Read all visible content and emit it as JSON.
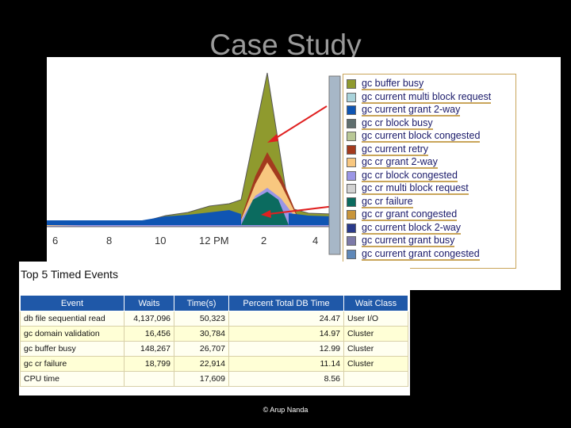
{
  "slide": {
    "title": "Case Study",
    "footer": "© Arup Nanda"
  },
  "chart": {
    "x_ticks": [
      "6",
      "8",
      "10",
      "12 PM",
      "2",
      "4"
    ],
    "legend": [
      {
        "label": "gc buffer busy",
        "color": "#8f9a2e"
      },
      {
        "label": "gc current multi block request",
        "color": "#a9d3da"
      },
      {
        "label": "gc current grant 2-way",
        "color": "#0f55b3"
      },
      {
        "label": "gc cr block busy",
        "color": "#5f6f6f"
      },
      {
        "label": "gc current block congested",
        "color": "#b9c896"
      },
      {
        "label": "gc current retry",
        "color": "#a33a1e"
      },
      {
        "label": "gc cr grant 2-way",
        "color": "#f8c77f"
      },
      {
        "label": "gc cr block congested",
        "color": "#9b96e6"
      },
      {
        "label": "gc cr multi block request",
        "color": "#d2d2d2"
      },
      {
        "label": "gc cr failure",
        "color": "#0b6b5f"
      },
      {
        "label": "gc cr grant congested",
        "color": "#c8953a"
      },
      {
        "label": "gc current block 2-way",
        "color": "#2a3a8a"
      },
      {
        "label": "gc current grant busy",
        "color": "#7d7aa8"
      },
      {
        "label": "gc current grant congested",
        "color": "#5f88b8"
      }
    ]
  },
  "events": {
    "title": "Top 5 Timed Events",
    "columns": [
      "Event",
      "Waits",
      "Time(s)",
      "Percent Total DB Time",
      "Wait Class"
    ],
    "rows": [
      [
        "db file sequential read",
        "4,137,096",
        "50,323",
        "24.47",
        "User I/O"
      ],
      [
        "gc domain validation",
        "16,456",
        "30,784",
        "14.97",
        "Cluster"
      ],
      [
        "gc buffer busy",
        "148,267",
        "26,707",
        "12.99",
        "Cluster"
      ],
      [
        "gc cr failure",
        "18,799",
        "22,914",
        "11.14",
        "Cluster"
      ],
      [
        "CPU time",
        "",
        "17,609",
        "8.56",
        ""
      ]
    ]
  }
}
